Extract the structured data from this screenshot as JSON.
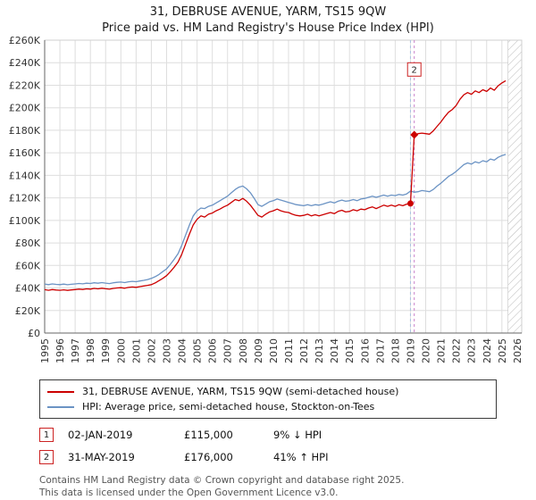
{
  "page": {
    "title": "31, DEBRUSE AVENUE, YARM, TS15 9QW",
    "subtitle": "Price paid vs. HM Land Registry's House Price Index (HPI)"
  },
  "chart_data": {
    "type": "line",
    "title": "31, DEBRUSE AVENUE, YARM, TS15 9QW — Price paid vs. HPI",
    "unit": "GBP thousands",
    "ylim_thousands": [
      0,
      260
    ],
    "y_tick_step_thousands": 20,
    "y_tick_labels": [
      "£0",
      "£20K",
      "£40K",
      "£60K",
      "£80K",
      "£100K",
      "£120K",
      "£140K",
      "£160K",
      "£180K",
      "£200K",
      "£220K",
      "£240K",
      "£260K"
    ],
    "x_domain": [
      1995,
      2026.3
    ],
    "x_tick_years": [
      1995,
      1996,
      1997,
      1998,
      1999,
      2000,
      2001,
      2002,
      2003,
      2004,
      2005,
      2006,
      2007,
      2008,
      2009,
      2010,
      2011,
      2012,
      2013,
      2014,
      2015,
      2016,
      2017,
      2018,
      2019,
      2020,
      2021,
      2022,
      2023,
      2024,
      2025,
      2026
    ],
    "x_start": 1995,
    "x_step": 0.25,
    "hatch_from": 2025.4,
    "grid": true,
    "legend_position": "below",
    "series": [
      {
        "name": "31, DEBRUSE AVENUE, YARM, TS15 9QW (semi-detached house)",
        "color": "#cc0000",
        "values_thousands": [
          38.5,
          38.0,
          38.6,
          38.2,
          38.0,
          38.4,
          37.9,
          38.3,
          38.6,
          39.0,
          38.7,
          39.2,
          39.0,
          39.6,
          39.2,
          39.8,
          39.3,
          38.9,
          39.6,
          40.0,
          40.3,
          39.8,
          40.5,
          40.9,
          40.6,
          41.2,
          41.8,
          42.3,
          43.0,
          44.5,
          46.5,
          48.5,
          51.0,
          54.5,
          58.5,
          63.0,
          70.0,
          79.0,
          88.0,
          96.0,
          101.0,
          104.0,
          103.0,
          105.5,
          106.5,
          108.5,
          110.0,
          112.0,
          113.5,
          116.0,
          118.5,
          117.5,
          119.5,
          117.0,
          113.5,
          109.0,
          104.5,
          103.0,
          105.5,
          107.5,
          108.5,
          110.0,
          108.5,
          107.5,
          107.0,
          105.5,
          104.5,
          104.0,
          104.5,
          105.5,
          104.0,
          105.0,
          104.0,
          105.0,
          106.0,
          107.0,
          106.0,
          108.0,
          109.0,
          107.5,
          108.0,
          109.5,
          108.5,
          110.0,
          109.5,
          111.0,
          112.0,
          110.5,
          112.0,
          113.5,
          112.5,
          113.5,
          112.5,
          114.0,
          113.0,
          114.5,
          115.0,
          176.0,
          177.0,
          177.5,
          177.0,
          176.5,
          179.5,
          183.5,
          187.5,
          192.0,
          196.0,
          198.5,
          202.0,
          207.5,
          211.5,
          213.5,
          212.0,
          215.0,
          213.5,
          216.0,
          214.5,
          217.5,
          215.5,
          219.5,
          222.0,
          224.0
        ]
      },
      {
        "name": "HPI: Average price, semi-detached house, Stockton-on-Tees",
        "color": "#6b93c4",
        "values_thousands": [
          43.5,
          43.0,
          43.6,
          43.2,
          43.0,
          43.4,
          42.9,
          43.3,
          43.6,
          44.0,
          43.7,
          44.2,
          44.0,
          44.6,
          44.2,
          44.8,
          44.3,
          43.9,
          44.6,
          45.0,
          45.3,
          44.8,
          45.5,
          45.9,
          45.6,
          46.2,
          46.8,
          47.5,
          48.5,
          50.0,
          52.0,
          54.5,
          57.0,
          61.0,
          65.5,
          70.5,
          78.0,
          87.0,
          96.0,
          104.0,
          108.5,
          111.0,
          110.5,
          112.5,
          113.5,
          115.5,
          117.5,
          119.5,
          121.5,
          124.5,
          127.5,
          129.5,
          130.5,
          128.0,
          124.5,
          119.5,
          114.0,
          112.5,
          114.5,
          116.5,
          117.5,
          119.0,
          118.0,
          117.0,
          116.0,
          115.0,
          114.0,
          113.5,
          113.0,
          114.0,
          113.0,
          114.0,
          113.5,
          114.5,
          115.5,
          116.5,
          115.5,
          117.0,
          118.0,
          117.0,
          117.5,
          118.5,
          117.5,
          119.0,
          119.5,
          120.5,
          121.5,
          120.5,
          121.5,
          122.5,
          121.5,
          122.5,
          122.0,
          123.0,
          122.5,
          123.5,
          126.0,
          125.0,
          125.5,
          126.5,
          126.0,
          125.5,
          127.5,
          130.5,
          133.0,
          136.0,
          139.0,
          141.0,
          143.5,
          146.5,
          149.5,
          151.0,
          150.0,
          152.0,
          151.0,
          153.0,
          152.0,
          154.5,
          153.5,
          156.0,
          157.5,
          158.5
        ]
      }
    ],
    "vlines": [
      {
        "x": 2019.0,
        "color": "#a9c2e0",
        "style": "dashed"
      },
      {
        "x": 2019.25,
        "color": "#c97fc9",
        "style": "dashed"
      }
    ],
    "markers": [
      {
        "x": 2019.0,
        "value_thousands": 115,
        "shape": "circle",
        "label": "1"
      },
      {
        "x": 2019.25,
        "value_thousands": 176,
        "shape": "diamond",
        "label": "2"
      }
    ],
    "annotation": {
      "label": "2",
      "x": 2019.25,
      "value_thousands": 234
    }
  },
  "legend": {
    "items": [
      {
        "label": "31, DEBRUSE AVENUE, YARM, TS15 9QW (semi-detached house)",
        "color": "#cc0000"
      },
      {
        "label": "HPI: Average price, semi-detached house, Stockton-on-Tees",
        "color": "#6b93c4"
      }
    ]
  },
  "transactions": [
    {
      "num": "1",
      "date": "02-JAN-2019",
      "price": "£115,000",
      "hpi": "9% ↓ HPI"
    },
    {
      "num": "2",
      "date": "31-MAY-2019",
      "price": "£176,000",
      "hpi": "41% ↑ HPI"
    }
  ],
  "footer": {
    "line1": "Contains HM Land Registry data © Crown copyright and database right 2025.",
    "line2": "This data is licensed under the Open Government Licence v3.0."
  }
}
